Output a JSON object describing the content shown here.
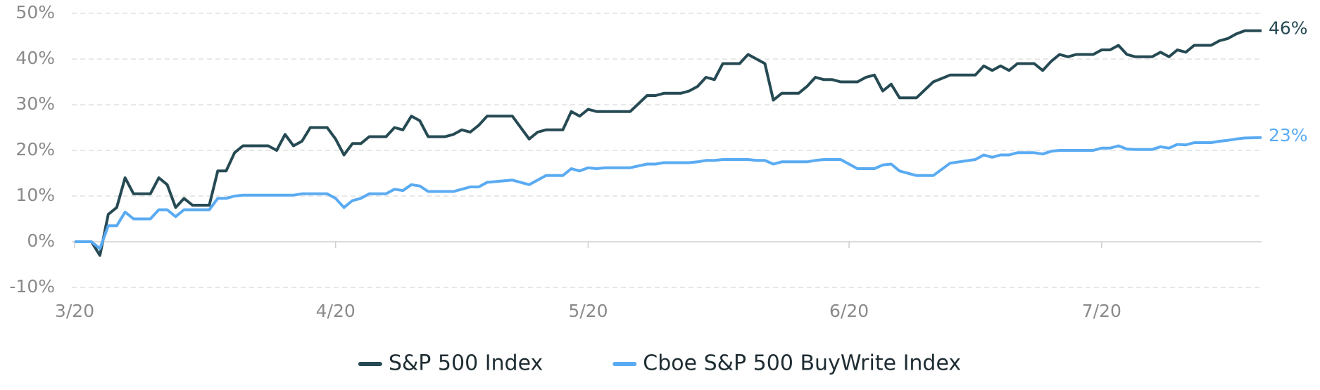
{
  "chart_data": {
    "type": "line",
    "x": [
      "3/20",
      "3/22",
      "3/23",
      "3/24",
      "3/25",
      "3/26",
      "3/27",
      "3/29",
      "3/30",
      "3/31",
      "4/1",
      "4/2",
      "4/3",
      "4/5",
      "4/6",
      "4/7",
      "4/8",
      "4/9",
      "4/12",
      "4/13",
      "4/14",
      "4/15",
      "4/16",
      "4/17",
      "4/19",
      "4/20",
      "4/21",
      "4/22",
      "4/23",
      "4/24",
      "4/26",
      "4/27",
      "4/28",
      "4/29",
      "4/30",
      "5/1",
      "5/3",
      "5/4",
      "5/5",
      "5/6",
      "5/7",
      "5/8",
      "5/11",
      "5/13",
      "5/14",
      "5/15",
      "5/17",
      "5/18",
      "5/19",
      "5/20",
      "5/21",
      "5/22",
      "5/25",
      "5/27",
      "5/28",
      "5/29",
      "5/31",
      "6/1",
      "6/2",
      "6/3",
      "6/4",
      "6/5",
      "6/7",
      "6/8",
      "6/9",
      "6/10",
      "6/11",
      "6/12",
      "6/14",
      "6/15",
      "6/16",
      "6/17",
      "6/18",
      "6/19",
      "6/21",
      "6/22",
      "6/23",
      "6/24",
      "6/25",
      "6/26",
      "6/28",
      "6/30",
      "7/2",
      "7/5",
      "7/6",
      "7/7",
      "7/8",
      "7/9",
      "7/10",
      "7/12",
      "7/13",
      "7/14",
      "7/15",
      "7/16",
      "7/17",
      "7/19",
      "7/20",
      "7/21",
      "7/22",
      "7/23",
      "7/24",
      "7/26",
      "7/27",
      "7/28",
      "7/29",
      "7/30",
      "7/31",
      "8/2",
      "8/3",
      "8/4",
      "8/5",
      "8/6",
      "8/8"
    ],
    "xticks": [
      "3/20",
      "4/20",
      "5/20",
      "6/20",
      "7/20"
    ],
    "ylim": [
      -10,
      50
    ],
    "yticks": [
      {
        "value": -10,
        "label": "-10%"
      },
      {
        "value": 0,
        "label": "0%"
      },
      {
        "value": 10,
        "label": "10%"
      },
      {
        "value": 20,
        "label": "20%"
      },
      {
        "value": 30,
        "label": "30%"
      },
      {
        "value": 40,
        "label": "40%"
      },
      {
        "value": 50,
        "label": "50%"
      }
    ],
    "grid": true,
    "legend": "bottom",
    "series": [
      {
        "name": "S&P 500 Index",
        "color": "#264a53",
        "values": [
          0,
          0,
          -3,
          6,
          7.5,
          14,
          10.5,
          10.5,
          14,
          12.5,
          7.5,
          9.5,
          8,
          8,
          15.5,
          15.5,
          19.5,
          21,
          21,
          20,
          23.5,
          21,
          22,
          25,
          25,
          22.5,
          19,
          21.5,
          21.5,
          23,
          23,
          25,
          24.5,
          27.5,
          26.5,
          23,
          23,
          23.5,
          24.5,
          24,
          25.5,
          27.5,
          27.5,
          22.5,
          24,
          24.5,
          24.5,
          28.5,
          27.5,
          29,
          28.5,
          28.5,
          28.5,
          32,
          32,
          32.5,
          32.5,
          33,
          34,
          36,
          35.5,
          39,
          39,
          41,
          40,
          39,
          31,
          32.5,
          32.5,
          34,
          36,
          35.5,
          35.5,
          35,
          35,
          36,
          36.5,
          33,
          34.5,
          31.5,
          31.5,
          35,
          36.5,
          36.5,
          38.5,
          37.5,
          38.5,
          37.5,
          39,
          39,
          37.5,
          39.5,
          41,
          40.5,
          41,
          41,
          42,
          42,
          43,
          41,
          40.5,
          40.5,
          41.5,
          40.5,
          42,
          41.5,
          43,
          43,
          44,
          44.5,
          45.5,
          46.2,
          46.2
        ],
        "value_labels": [
          null,
          null,
          null,
          null,
          null,
          null,
          null,
          null,
          null,
          null,
          null,
          null,
          null,
          null,
          null,
          null,
          null,
          null,
          null,
          null,
          null,
          null,
          null,
          null,
          null,
          null,
          null,
          null,
          null,
          null,
          null,
          null,
          null,
          null,
          null,
          null,
          null,
          null,
          null,
          null,
          null,
          null,
          null,
          null,
          null,
          null,
          null,
          null,
          null,
          null,
          null,
          null,
          null,
          null,
          null,
          null,
          null,
          null,
          null,
          null,
          null,
          null,
          null,
          null,
          null,
          null,
          null,
          null,
          null,
          null,
          null,
          null,
          null,
          null,
          null,
          null,
          null,
          null,
          null,
          null,
          null,
          null,
          null,
          null,
          null,
          null,
          null,
          null,
          null,
          null,
          null,
          null,
          null,
          null,
          null,
          null,
          null,
          null,
          null,
          null,
          null,
          null,
          null,
          null,
          null,
          null,
          null,
          null,
          null,
          null,
          null,
          null,
          "46%"
        ]
      },
      {
        "name": "Cboe S&P 500 BuyWrite Index",
        "color": "#5aabf2",
        "values": [
          0,
          0,
          -1.5,
          3.5,
          3.5,
          6.5,
          5,
          5,
          7,
          7,
          5.5,
          7,
          7,
          7,
          9.5,
          9.5,
          10,
          10.2,
          10.2,
          10.2,
          10.2,
          10.2,
          10.5,
          10.5,
          10.5,
          9.5,
          7.5,
          9,
          9.5,
          10.5,
          10.5,
          11.5,
          11.2,
          12.5,
          12.2,
          11,
          11,
          11,
          11.5,
          12,
          12,
          13,
          13.5,
          12.5,
          13.5,
          14.5,
          14.5,
          16,
          15.5,
          16.2,
          16,
          16.2,
          16.2,
          17,
          17,
          17.3,
          17.3,
          17.3,
          17.5,
          17.8,
          17.8,
          18,
          18,
          18,
          17.8,
          17.8,
          17,
          17.5,
          17.5,
          17.5,
          17.8,
          18,
          18,
          18,
          16,
          16,
          16,
          16.8,
          17,
          15.5,
          14.5,
          14.5,
          17.2,
          18,
          19,
          18.5,
          19,
          19,
          19.5,
          19.5,
          19.2,
          19.8,
          20,
          20,
          20,
          20,
          20.5,
          20.5,
          21,
          20.3,
          20.2,
          20.2,
          20.8,
          20.5,
          21.3,
          21.2,
          21.7,
          21.7,
          22,
          22.2,
          22.5,
          22.7,
          22.8
        ],
        "value_labels": [
          null,
          null,
          null,
          null,
          null,
          null,
          null,
          null,
          null,
          null,
          null,
          null,
          null,
          null,
          null,
          null,
          null,
          null,
          null,
          null,
          null,
          null,
          null,
          null,
          null,
          null,
          null,
          null,
          null,
          null,
          null,
          null,
          null,
          null,
          null,
          null,
          null,
          null,
          null,
          null,
          null,
          null,
          null,
          null,
          null,
          null,
          null,
          null,
          null,
          null,
          null,
          null,
          null,
          null,
          null,
          null,
          null,
          null,
          null,
          null,
          null,
          null,
          null,
          null,
          null,
          null,
          null,
          null,
          null,
          null,
          null,
          null,
          null,
          null,
          null,
          null,
          null,
          null,
          null,
          null,
          null,
          null,
          null,
          null,
          null,
          null,
          null,
          null,
          null,
          null,
          null,
          null,
          null,
          null,
          null,
          null,
          null,
          null,
          null,
          null,
          null,
          null,
          null,
          null,
          null,
          null,
          null,
          null,
          null,
          null,
          null,
          null,
          "23%"
        ]
      }
    ]
  }
}
